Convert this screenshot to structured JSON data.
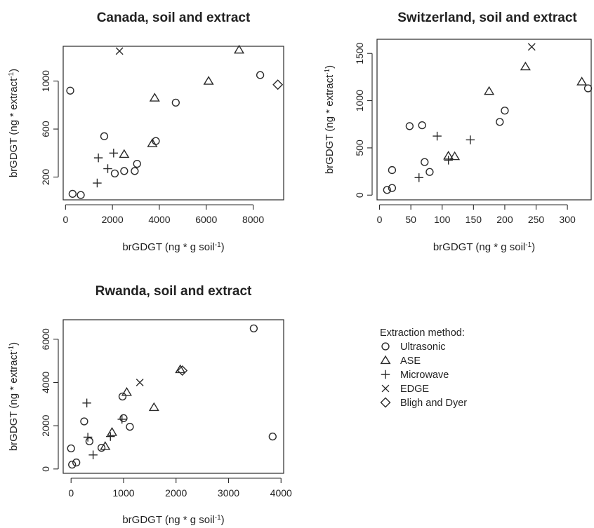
{
  "legend": {
    "title": "Extraction method:",
    "entries": [
      {
        "method": "Ultrasonic",
        "shape": "circle-icon"
      },
      {
        "method": "ASE",
        "shape": "triangle-icon"
      },
      {
        "method": "Microwave",
        "shape": "plus-icon"
      },
      {
        "method": "EDGE",
        "shape": "cross-icon"
      },
      {
        "method": "Bligh and Dyer",
        "shape": "diamond-icon"
      }
    ]
  },
  "chart_data": [
    {
      "type": "scatter",
      "title": "Canada, soil and extract",
      "xlabel": "brGDGT (ng * g soil-1)",
      "ylabel": "brGDGT (ng * extract-1)",
      "xlim": [
        -100,
        9300
      ],
      "ylim": [
        10,
        1290
      ],
      "xticks": [
        0,
        2000,
        4000,
        6000,
        8000
      ],
      "yticks": [
        200,
        600,
        1000
      ],
      "series": [
        {
          "name": "Ultrasonic",
          "points": [
            [
              200,
              920
            ],
            [
              300,
              60
            ],
            [
              650,
              50
            ],
            [
              1650,
              540
            ],
            [
              2100,
              230
            ],
            [
              2500,
              250
            ],
            [
              2950,
              250
            ],
            [
              3050,
              310
            ],
            [
              3850,
              500
            ],
            [
              4700,
              820
            ],
            [
              8300,
              1050
            ]
          ]
        },
        {
          "name": "ASE",
          "points": [
            [
              2500,
              390
            ],
            [
              3700,
              480
            ],
            [
              3800,
              860
            ],
            [
              6100,
              1000
            ],
            [
              7400,
              1260
            ]
          ]
        },
        {
          "name": "Microwave",
          "points": [
            [
              1350,
              150
            ],
            [
              1400,
              360
            ],
            [
              1800,
              270
            ],
            [
              2050,
              400
            ]
          ]
        },
        {
          "name": "EDGE",
          "points": [
            [
              2300,
              1250
            ]
          ]
        },
        {
          "name": "Bligh and Dyer",
          "points": [
            [
              9050,
              970
            ]
          ]
        }
      ]
    },
    {
      "type": "scatter",
      "title": "Switzerland, soil and extract",
      "xlabel": "brGDGT (ng * g soil-1)",
      "ylabel": "brGDGT (ng * extract-1)",
      "xlim": [
        -4,
        338
      ],
      "ylim": [
        -50,
        1650
      ],
      "xticks": [
        0,
        50,
        100,
        150,
        200,
        250,
        300
      ],
      "yticks": [
        0,
        500,
        1000,
        1500
      ],
      "series": [
        {
          "name": "Ultrasonic",
          "points": [
            [
              12,
              55
            ],
            [
              20,
              75
            ],
            [
              20,
              265
            ],
            [
              48,
              730
            ],
            [
              68,
              740
            ],
            [
              72,
              350
            ],
            [
              80,
              245
            ],
            [
              192,
              775
            ],
            [
              200,
              895
            ],
            [
              333,
              1130
            ]
          ]
        },
        {
          "name": "ASE",
          "points": [
            [
              110,
              415
            ],
            [
              120,
              410
            ],
            [
              175,
              1100
            ],
            [
              233,
              1360
            ],
            [
              323,
              1200
            ]
          ]
        },
        {
          "name": "Microwave",
          "points": [
            [
              63,
              185
            ],
            [
              92,
              625
            ],
            [
              110,
              370
            ],
            [
              145,
              585
            ]
          ]
        },
        {
          "name": "EDGE",
          "points": [
            [
              243,
              1570
            ]
          ]
        },
        {
          "name": "Bligh and Dyer",
          "points": []
        }
      ]
    },
    {
      "type": "scatter",
      "title": "Rwanda, soil and extract",
      "xlabel": "brGDGT (ng * g soil-1)",
      "ylabel": "brGDGT (ng * extract-1)",
      "xlim": [
        -150,
        4050
      ],
      "ylim": [
        -200,
        6900
      ],
      "xticks": [
        0,
        1000,
        2000,
        3000,
        4000
      ],
      "yticks": [
        0,
        2000,
        4000,
        6000
      ],
      "series": [
        {
          "name": "Ultrasonic",
          "points": [
            [
              0,
              950
            ],
            [
              20,
              200
            ],
            [
              100,
              300
            ],
            [
              250,
              2200
            ],
            [
              350,
              1280
            ],
            [
              580,
              980
            ],
            [
              980,
              3350
            ],
            [
              1000,
              2350
            ],
            [
              1120,
              1950
            ],
            [
              3480,
              6500
            ],
            [
              3840,
              1500
            ]
          ]
        },
        {
          "name": "ASE",
          "points": [
            [
              650,
              1050
            ],
            [
              780,
              1700
            ],
            [
              1060,
              3550
            ],
            [
              1580,
              2850
            ],
            [
              2080,
              4600
            ]
          ]
        },
        {
          "name": "Microwave",
          "points": [
            [
              300,
              3050
            ],
            [
              320,
              1470
            ],
            [
              420,
              650
            ],
            [
              750,
              1500
            ],
            [
              970,
              2300
            ]
          ]
        },
        {
          "name": "EDGE",
          "points": [
            [
              1310,
              4000
            ]
          ]
        },
        {
          "name": "Bligh and Dyer",
          "points": [
            [
              2120,
              4550
            ]
          ]
        }
      ]
    }
  ]
}
